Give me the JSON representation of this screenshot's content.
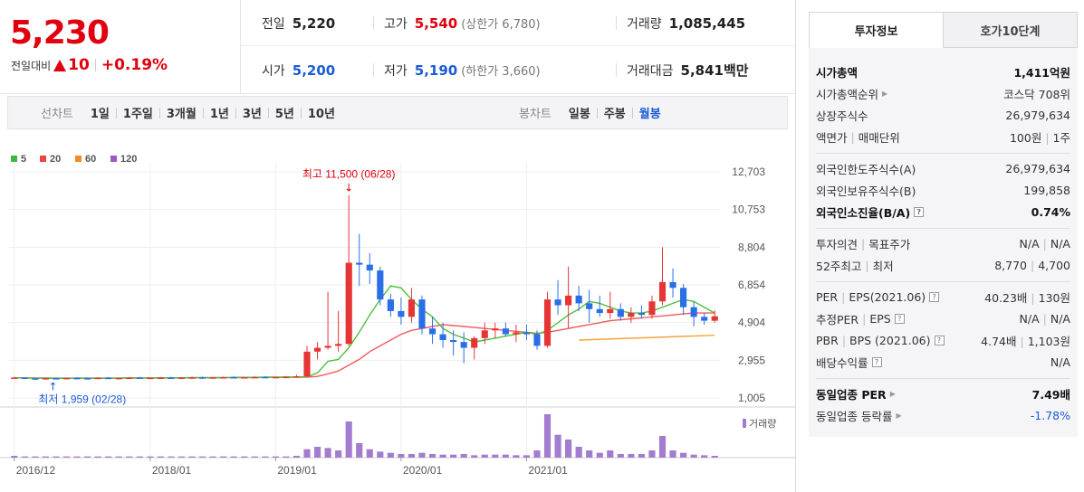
{
  "price": {
    "current": "5,230",
    "change_label": "전일대비",
    "change_value": "10",
    "change_pct": "+0.19%"
  },
  "quote": {
    "prev_label": "전일",
    "prev_value": "5,220",
    "high_label": "고가",
    "high_value": "5,540",
    "upper_limit": "(상한가 6,780)",
    "volume_label": "거래량",
    "volume_value": "1,085,445",
    "open_label": "시가",
    "open_value": "5,200",
    "low_label": "저가",
    "low_value": "5,190",
    "lower_limit": "(하한가 3,660)",
    "amount_label": "거래대금",
    "amount_value": "5,841",
    "amount_unit": "백만"
  },
  "tabs": {
    "line_title": "선차트",
    "line_items": [
      "1일",
      "1주일",
      "3개월",
      "1년",
      "3년",
      "5년",
      "10년"
    ],
    "candle_title": "봉차트",
    "candle_items": [
      "일봉",
      "주봉",
      "월봉"
    ],
    "candle_active": "월봉"
  },
  "chart_data": {
    "type": "candlestick",
    "legend": [
      "5",
      "20",
      "60",
      "120"
    ],
    "legend_colors": [
      "#3cb83c",
      "#e84545",
      "#f28c28",
      "#9b59c9"
    ],
    "y_ticks": [
      "12,703",
      "10,753",
      "8,804",
      "6,854",
      "4,904",
      "2,955",
      "1,005"
    ],
    "y_range": [
      1005,
      12703
    ],
    "x_ticks": [
      "2016/12",
      "2018/01",
      "2019/01",
      "2020/01",
      "2021/01"
    ],
    "max_label": "최고 11,500 (06/28)",
    "min_label": "최저 1,959 (02/28)",
    "volume_label": "거래량",
    "colors": {
      "up": "#e63535",
      "down": "#2b6fe6",
      "ma5": "#4cbf3f",
      "ma20": "#ef5b5b",
      "ma60": "#f5a33b",
      "vol": "#a27ccf"
    },
    "candles": [
      [
        2050,
        2100,
        2000,
        2060
      ],
      [
        2060,
        2080,
        1990,
        2020
      ],
      [
        2020,
        2050,
        1960,
        2000
      ],
      [
        2000,
        2040,
        1959,
        2030
      ],
      [
        2030,
        2060,
        1990,
        2010
      ],
      [
        2010,
        2050,
        1980,
        2040
      ],
      [
        2040,
        2080,
        2010,
        2030
      ],
      [
        2030,
        2060,
        2000,
        2020
      ],
      [
        2020,
        2070,
        2000,
        2050
      ],
      [
        2050,
        2090,
        2020,
        2030
      ],
      [
        2030,
        2060,
        2000,
        2040
      ],
      [
        2040,
        2080,
        2010,
        2060
      ],
      [
        2060,
        2100,
        2030,
        2040
      ],
      [
        2040,
        2070,
        2010,
        2050
      ],
      [
        2050,
        2090,
        2020,
        2060
      ],
      [
        2060,
        2100,
        2030,
        2050
      ],
      [
        2050,
        2080,
        2020,
        2060
      ],
      [
        2060,
        2100,
        2030,
        2070
      ],
      [
        2070,
        2110,
        2040,
        2060
      ],
      [
        2060,
        2090,
        2030,
        2070
      ],
      [
        2070,
        2110,
        2040,
        2080
      ],
      [
        2080,
        2120,
        2050,
        2070
      ],
      [
        2070,
        2100,
        2040,
        2080
      ],
      [
        2080,
        2120,
        2050,
        2090
      ],
      [
        2090,
        2130,
        2060,
        2080
      ],
      [
        2080,
        2110,
        2050,
        2090
      ],
      [
        2090,
        2130,
        2060,
        2100
      ],
      [
        2100,
        2200,
        2070,
        2120
      ],
      [
        2120,
        3700,
        2100,
        3400
      ],
      [
        3400,
        3900,
        3000,
        3600
      ],
      [
        3600,
        6500,
        3500,
        3700
      ],
      [
        3700,
        5500,
        3400,
        3800
      ],
      [
        3800,
        11500,
        3700,
        8000
      ],
      [
        8000,
        9500,
        6800,
        7900
      ],
      [
        7900,
        8500,
        6900,
        7600
      ],
      [
        7600,
        7800,
        5800,
        6100
      ],
      [
        6100,
        6400,
        5200,
        5500
      ],
      [
        5500,
        6200,
        4800,
        5200
      ],
      [
        5200,
        6700,
        4900,
        6100
      ],
      [
        6100,
        6300,
        4300,
        4600
      ],
      [
        4600,
        5200,
        3800,
        4300
      ],
      [
        4300,
        4900,
        3600,
        4000
      ],
      [
        4000,
        4500,
        3200,
        3900
      ],
      [
        3900,
        4400,
        2800,
        3600
      ],
      [
        3600,
        4200,
        3000,
        4100
      ],
      [
        4100,
        4900,
        3800,
        4500
      ],
      [
        4500,
        4900,
        4100,
        4600
      ],
      [
        4600,
        4900,
        4200,
        4300
      ],
      [
        4300,
        4800,
        3900,
        4400
      ],
      [
        4400,
        4800,
        4000,
        4300
      ],
      [
        4300,
        4500,
        3500,
        3700
      ],
      [
        3700,
        6500,
        3600,
        6100
      ],
      [
        6100,
        7100,
        5300,
        5800
      ],
      [
        5800,
        7800,
        4600,
        6300
      ],
      [
        6300,
        6800,
        5500,
        5900
      ],
      [
        5900,
        6600,
        4900,
        5600
      ],
      [
        5600,
        6300,
        5200,
        5400
      ],
      [
        5400,
        6500,
        5100,
        5600
      ],
      [
        5600,
        5900,
        5000,
        5200
      ],
      [
        5200,
        5700,
        4900,
        5400
      ],
      [
        5400,
        5800,
        5100,
        5300
      ],
      [
        5300,
        6300,
        5100,
        6000
      ],
      [
        6000,
        8800,
        5800,
        7000
      ],
      [
        7000,
        7700,
        6200,
        6700
      ],
      [
        6700,
        6900,
        5300,
        5700
      ],
      [
        5700,
        6000,
        4700,
        5200
      ],
      [
        5200,
        5400,
        4800,
        5000
      ],
      [
        5000,
        5540,
        4900,
        5230
      ]
    ],
    "volumes": [
      3,
      2,
      2,
      2,
      2,
      2,
      2,
      2,
      2,
      2,
      2,
      2,
      2,
      2,
      2,
      2,
      2,
      2,
      2,
      2,
      2,
      2,
      2,
      2,
      2,
      2,
      2,
      3,
      14,
      18,
      16,
      12,
      60,
      24,
      14,
      10,
      8,
      6,
      6,
      8,
      6,
      5,
      5,
      6,
      4,
      5,
      5,
      5,
      4,
      4,
      12,
      72,
      38,
      30,
      18,
      12,
      8,
      12,
      6,
      6,
      6,
      12,
      36,
      12,
      8,
      5,
      4,
      3
    ],
    "ma5": [
      2050,
      2040,
      2030,
      2030,
      2025,
      2020,
      2030,
      2030,
      2030,
      2030,
      2030,
      2040,
      2040,
      2040,
      2050,
      2050,
      2050,
      2060,
      2060,
      2060,
      2060,
      2070,
      2070,
      2070,
      2080,
      2080,
      2090,
      2090,
      2100,
      2300,
      2900,
      3000,
      3600,
      4400,
      5300,
      6100,
      6800,
      6700,
      6100,
      5600,
      5200,
      4600,
      4300,
      4100,
      3900,
      4000,
      4100,
      4200,
      4300,
      4400,
      4300,
      4500,
      4900,
      5300,
      5600,
      6000,
      5900,
      5700,
      5500,
      5400,
      5400,
      5500,
      5700,
      5900,
      6100,
      6000,
      5700,
      5400
    ],
    "ma20": [
      2050,
      2045,
      2040,
      2035,
      2030,
      2030,
      2030,
      2030,
      2030,
      2030,
      2030,
      2035,
      2035,
      2040,
      2040,
      2040,
      2045,
      2050,
      2050,
      2050,
      2055,
      2060,
      2060,
      2060,
      2065,
      2070,
      2070,
      2075,
      2080,
      2120,
      2250,
      2400,
      2700,
      3000,
      3400,
      3700,
      4000,
      4300,
      4500,
      4600,
      4700,
      4800,
      4750,
      4700,
      4650,
      4600,
      4550,
      4500,
      4450,
      4400,
      4350,
      4400,
      4500,
      4600,
      4700,
      4800,
      4900,
      5000,
      5050,
      5100,
      5150,
      5200,
      5250,
      5300,
      5350,
      5400,
      5400,
      5400
    ],
    "ma60_points": [
      [
        54,
        4000
      ],
      [
        67,
        4250
      ]
    ]
  },
  "right": {
    "tab_active": "투자정보",
    "tab_other": "호가10단계",
    "sections": [
      [
        {
          "k": "시가총액",
          "v": "1,411",
          "u": "억원",
          "bold": true
        },
        {
          "k": "시가총액순위",
          "v": "코스닥 708위",
          "arrow": true
        },
        {
          "k": "상장주식수",
          "v": "26,979,634"
        },
        {
          "k": "액면가",
          "k2": "매매단위",
          "v": "100원",
          "v2": "1주"
        }
      ],
      [
        {
          "k": "외국인한도주식수(A)",
          "v": "26,979,634"
        },
        {
          "k": "외국인보유주식수(B)",
          "v": "199,858"
        },
        {
          "k": "외국인소진율(B/A)",
          "v": "0.74%",
          "bold": true,
          "q": true
        }
      ],
      [
        {
          "k": "투자의견",
          "k2": "목표주가",
          "v": "N/A",
          "v2": "N/A"
        },
        {
          "k": "52주최고",
          "k2": "최저",
          "v": "8,770",
          "v2": "4,700"
        }
      ],
      [
        {
          "k": "PER",
          "k2": "EPS(2021.06)",
          "v": "40.23배",
          "v2": "130원",
          "q": true
        },
        {
          "k": "추정PER",
          "k2": "EPS",
          "v": "N/A",
          "v2": "N/A",
          "q": true
        },
        {
          "k": "PBR",
          "k2": "BPS (2021.06)",
          "v": "4.74배",
          "v2": "1,103원",
          "q": true
        },
        {
          "k": "배당수익률",
          "v": "N/A",
          "q": true
        }
      ],
      [
        {
          "k": "동일업종 PER",
          "v": "7.49",
          "u": "배",
          "bold": true,
          "arrow": true
        },
        {
          "k": "동일업종 등락률",
          "v": "-1.78%",
          "blue": true,
          "arrow": true
        }
      ]
    ]
  }
}
